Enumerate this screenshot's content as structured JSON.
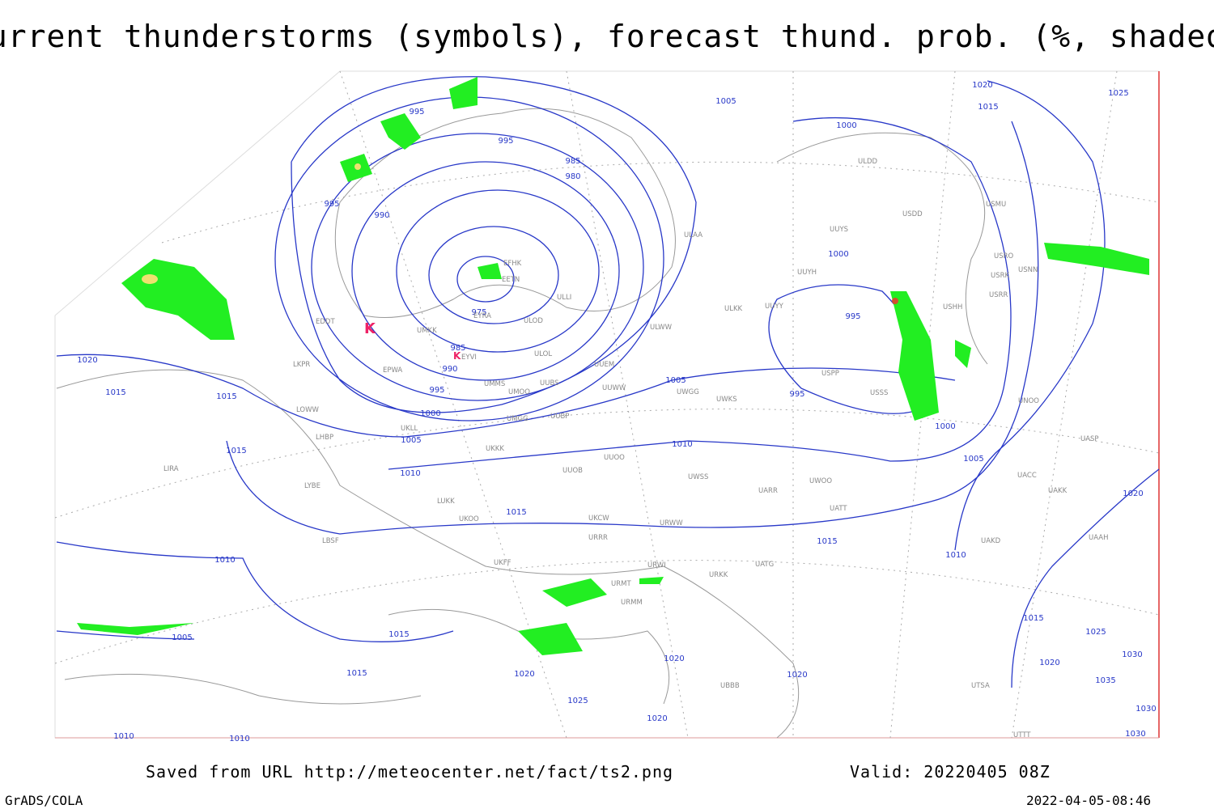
{
  "title": "Current thunderstorms (symbols), forecast thund. prob. (%, shaded)",
  "footer": {
    "source": "Saved from URL http://meteocenter.net/fact/ts2.png",
    "valid": "Valid: 20220405 08Z",
    "software": "GrADS/COLA",
    "timestamp": "2022-04-05-08:46"
  },
  "isobar_labels": [
    "995",
    "995",
    "985",
    "980",
    "995",
    "990",
    "975",
    "985",
    "990",
    "995",
    "1000",
    "1005",
    "1010",
    "1005",
    "1000",
    "1015",
    "1020",
    "1025",
    "1000",
    "995",
    "995",
    "1005",
    "1010",
    "1000",
    "1005",
    "1020",
    "1015",
    "1015",
    "1015",
    "1015",
    "1015",
    "1010",
    "1020",
    "1010",
    "1005",
    "1015",
    "1015",
    "1020",
    "1020",
    "1025",
    "1020",
    "1020",
    "1015",
    "1025",
    "1020",
    "1030",
    "1035",
    "1030",
    "1030",
    "1010",
    "1010"
  ],
  "stations": [
    "ULDD",
    "USDD",
    "USMU",
    "UUYS",
    "ULAA",
    "EFHK",
    "EETN",
    "UUYH",
    "USRO",
    "USRK",
    "USNN",
    "USRR",
    "ULLI",
    "ULKK",
    "UUYY",
    "USHH",
    "EYRA",
    "ULOD",
    "EDDT",
    "UMKK",
    "ULWW",
    "EYVI",
    "ULOL",
    "UUEM",
    "LKPR",
    "EPWA",
    "UUBS",
    "UMMS",
    "UMOO",
    "UUWW",
    "UWGG",
    "UWKS",
    "USPP",
    "USSS",
    "LOWW",
    "UMGG",
    "UUBP",
    "LHBP",
    "UKLL",
    "UKKK",
    "UUOO",
    "LIRA",
    "LYBE",
    "UUOB",
    "UWSS",
    "UARR",
    "UWOO",
    "LUKK",
    "UKOO",
    "UKCW",
    "URWW",
    "UATT",
    "UAKD",
    "LBSF",
    "URRR",
    "UKFF",
    "URWI",
    "UATG",
    "URKK",
    "URMT",
    "URMM",
    "UBBB",
    "UTSA",
    "UNOO",
    "UACC",
    "UAKK",
    "UASP",
    "UAAH",
    "UTTT"
  ]
}
